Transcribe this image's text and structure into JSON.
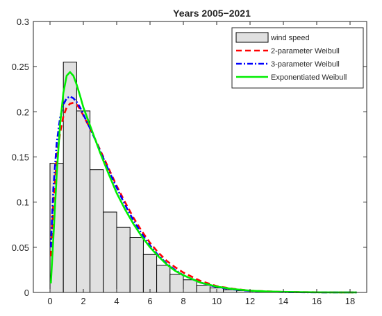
{
  "chart_data": {
    "type": "histogram-with-fitted-lines",
    "title": "Years 2005−2021",
    "xlabel": "",
    "ylabel": "",
    "xlim": [
      -1,
      19
    ],
    "ylim": [
      0,
      0.3
    ],
    "xticks": [
      0,
      2,
      4,
      6,
      8,
      10,
      12,
      14,
      16,
      18
    ],
    "yticks": [
      0,
      0.05,
      0.1,
      0.15,
      0.2,
      0.25,
      0.3
    ],
    "ytick_labels": [
      "0",
      "0.05",
      "0.1",
      "0.15",
      "0.2",
      "0.25",
      "0.3"
    ],
    "grid": false,
    "legend_position": "top-right",
    "histogram": {
      "name": "wind speed",
      "bin_width": 0.8,
      "bin_start": 0,
      "values": [
        0.143,
        0.255,
        0.201,
        0.136,
        0.089,
        0.072,
        0.061,
        0.042,
        0.03,
        0.02,
        0.014,
        0.008,
        0.005,
        0.003,
        0.002,
        0.0015,
        0.001,
        0.0008,
        0.0005,
        0.0003,
        0.0002,
        0.0002,
        0.0001
      ],
      "color": "#e0e0e0"
    },
    "series": [
      {
        "name": "2-parameter Weibull",
        "style": "dashed",
        "color": "#ff0000",
        "x": [
          0.05,
          0.2,
          0.4,
          0.6,
          0.8,
          1.0,
          1.2,
          1.4,
          1.6,
          1.8,
          2.0,
          2.5,
          3.0,
          3.5,
          4.0,
          4.5,
          5.0,
          5.5,
          6.0,
          6.5,
          7.0,
          7.5,
          8.0,
          9.0,
          10.0,
          11.0,
          12.0,
          13.0,
          14.0,
          15.0,
          16.0,
          17.0,
          18.0,
          18.4
        ],
        "y": [
          0.04,
          0.1,
          0.148,
          0.176,
          0.195,
          0.205,
          0.209,
          0.21,
          0.208,
          0.203,
          0.196,
          0.178,
          0.158,
          0.138,
          0.118,
          0.1,
          0.083,
          0.068,
          0.055,
          0.044,
          0.035,
          0.028,
          0.022,
          0.013,
          0.007,
          0.004,
          0.002,
          0.0012,
          0.0006,
          0.0003,
          0.0002,
          0.0001,
          5e-05,
          3e-05
        ]
      },
      {
        "name": "3-parameter Weibull",
        "style": "dashdot",
        "color": "#0000ff",
        "x": [
          0.05,
          0.2,
          0.4,
          0.6,
          0.8,
          1.0,
          1.2,
          1.4,
          1.6,
          1.8,
          2.0,
          2.5,
          3.0,
          3.5,
          4.0,
          4.5,
          5.0,
          5.5,
          6.0,
          6.5,
          7.0,
          7.5,
          8.0,
          9.0,
          10.0,
          11.0,
          12.0,
          13.0,
          14.0,
          15.0,
          16.0,
          17.0,
          18.0,
          18.4
        ],
        "y": [
          0.05,
          0.115,
          0.165,
          0.193,
          0.208,
          0.215,
          0.217,
          0.215,
          0.211,
          0.205,
          0.197,
          0.178,
          0.157,
          0.136,
          0.116,
          0.097,
          0.08,
          0.065,
          0.052,
          0.041,
          0.032,
          0.025,
          0.019,
          0.011,
          0.006,
          0.0033,
          0.0017,
          0.0009,
          0.0004,
          0.0002,
          0.0001,
          5e-05,
          2e-05,
          1e-05
        ]
      },
      {
        "name": "Exponentiated Weibull",
        "style": "solid",
        "color": "#00ee00",
        "x": [
          0.05,
          0.2,
          0.4,
          0.6,
          0.8,
          1.0,
          1.2,
          1.4,
          1.6,
          1.8,
          2.0,
          2.5,
          3.0,
          3.5,
          4.0,
          4.5,
          5.0,
          5.5,
          6.0,
          6.5,
          7.0,
          7.5,
          8.0,
          9.0,
          10.0,
          11.0,
          12.0,
          13.0,
          14.0,
          15.0,
          16.0,
          17.0,
          18.0,
          18.4
        ],
        "y": [
          0.01,
          0.06,
          0.13,
          0.185,
          0.221,
          0.24,
          0.244,
          0.24,
          0.23,
          0.218,
          0.205,
          0.18,
          0.155,
          0.132,
          0.11,
          0.092,
          0.076,
          0.062,
          0.05,
          0.04,
          0.031,
          0.024,
          0.019,
          0.011,
          0.0065,
          0.0037,
          0.002,
          0.0011,
          0.0006,
          0.0003,
          0.00015,
          7e-05,
          3e-05,
          2e-05
        ]
      }
    ]
  }
}
